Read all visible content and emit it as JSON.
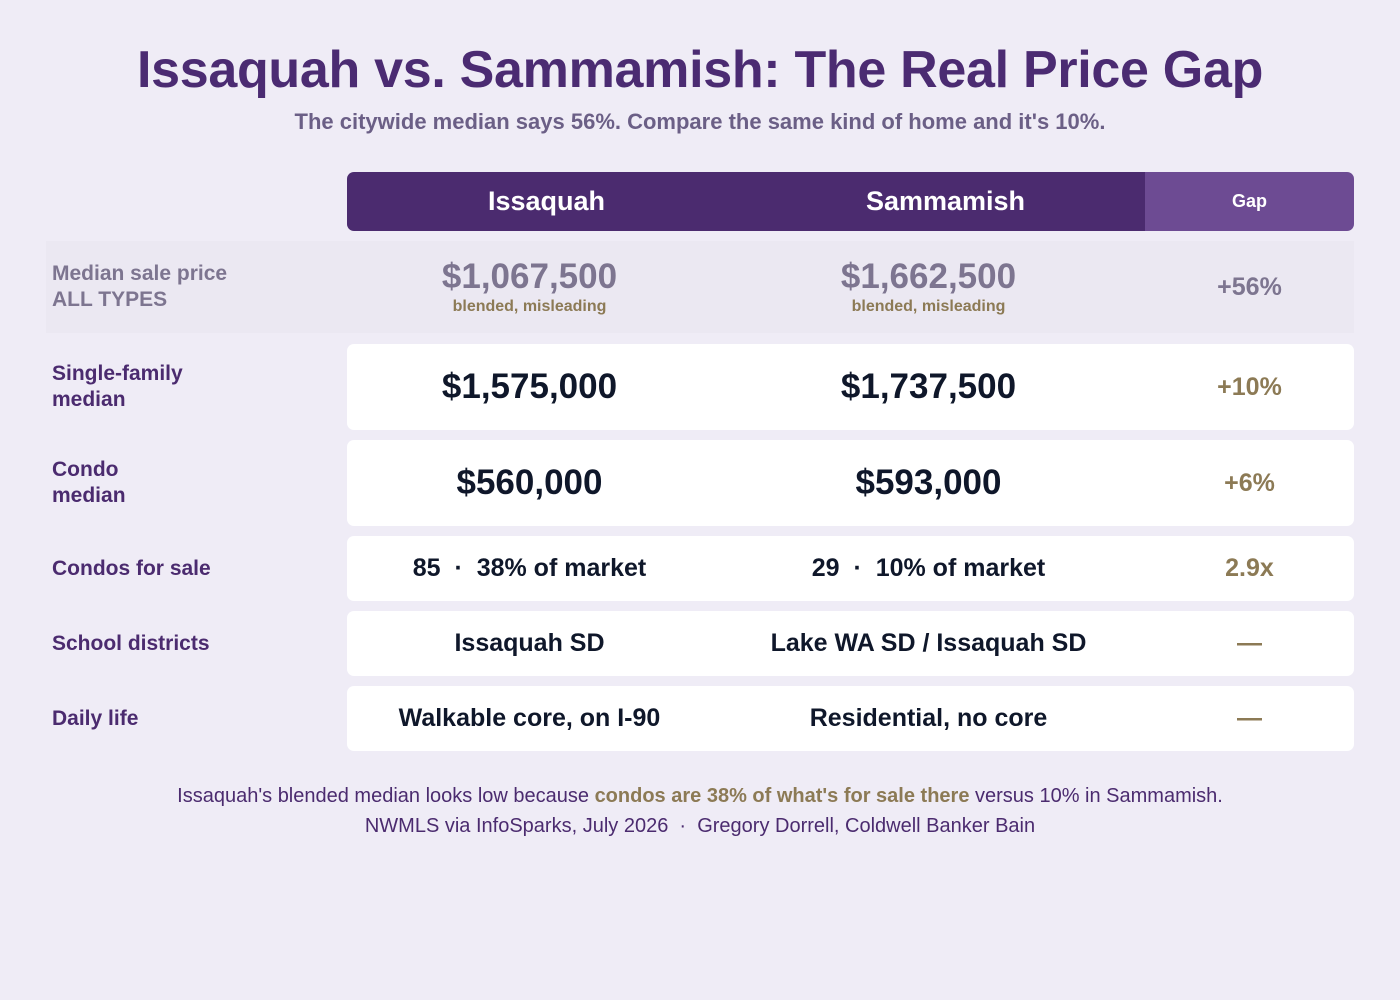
{
  "title": "Issaquah vs. Sammamish: The Real Price Gap",
  "subtitle": "The citywide median says 56%. Compare the same kind of home and it's 10%.",
  "header": {
    "col1": "Issaquah",
    "col2": "Sammamish",
    "col3": "Gap"
  },
  "rows": [
    {
      "label_line1": "Median sale price",
      "label_line2": "ALL TYPES",
      "issaquah": "$1,067,500",
      "issaquah_note": "blended, misleading",
      "sammamish": "$1,662,500",
      "sammamish_note": "blended, misleading",
      "gap": "+56%"
    },
    {
      "label_line1": "Single-family",
      "label_line2": "median",
      "issaquah": "$1,575,000",
      "sammamish": "$1,737,500",
      "gap": "+10%"
    },
    {
      "label_line1": "Condo",
      "label_line2": "median",
      "issaquah": "$560,000",
      "sammamish": "$593,000",
      "gap": "+6%"
    },
    {
      "label": "Condos for sale",
      "issaquah": "85  ·  38% of market",
      "sammamish": "29  ·  10% of market",
      "gap": "2.9x"
    },
    {
      "label": "School districts",
      "issaquah": "Issaquah SD",
      "sammamish": "Lake WA SD / Issaquah SD",
      "gap": "—"
    },
    {
      "label": "Daily life",
      "issaquah": "Walkable core, on I-90",
      "sammamish": "Residential, no core",
      "gap": "—"
    }
  ],
  "footer": {
    "line1_pre": "Issaquah's blended median looks low because ",
    "line1_highlight": "condos are 38% of what's for sale there",
    "line1_post": " versus 10% in Sammamish.",
    "line2": "NWMLS via InfoSparks, July 2026  ·  Gregory Dorrell, Coldwell Banker Bain"
  },
  "colors": {
    "background": "#efecf6",
    "title": "#4b2b72",
    "header": "#4b2b6f",
    "header_gap": "#6d4b93",
    "accent_gold": "#8c7a55",
    "muted": "#7d7590"
  }
}
